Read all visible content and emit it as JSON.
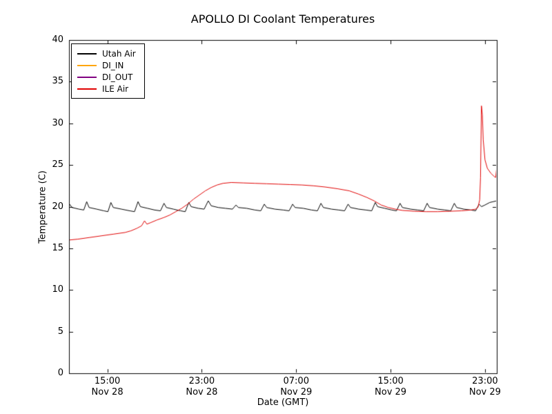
{
  "page": {
    "background": "#ffffff"
  },
  "chart_data": {
    "type": "line",
    "title": "APOLLO DI Coolant Temperatures",
    "xlabel": "Date (GMT)",
    "ylabel": "Temperature (C)",
    "x_unit": "hours since Nov 28 00:00 GMT",
    "xlim": [
      11.75,
      48.0
    ],
    "ylim": [
      0,
      40
    ],
    "y_ticks": [
      0,
      5,
      10,
      15,
      20,
      25,
      30,
      35,
      40
    ],
    "x_ticks": [
      {
        "hour": 15,
        "time": "15:00",
        "date": "Nov 28"
      },
      {
        "hour": 23,
        "time": "23:00",
        "date": "Nov 28"
      },
      {
        "hour": 31,
        "time": "07:00",
        "date": "Nov 29"
      },
      {
        "hour": 39,
        "time": "15:00",
        "date": "Nov 29"
      },
      {
        "hour": 47,
        "time": "23:00",
        "date": "Nov 29"
      }
    ],
    "legend_position": "top-left",
    "grid": false,
    "series": [
      {
        "name": "Utah Air",
        "color": "#000000",
        "points": [
          [
            11.8,
            20.3
          ],
          [
            12.0,
            19.9
          ],
          [
            12.6,
            19.7
          ],
          [
            13.0,
            19.6
          ],
          [
            13.25,
            20.6
          ],
          [
            13.45,
            19.9
          ],
          [
            14.1,
            19.7
          ],
          [
            14.7,
            19.5
          ],
          [
            15.05,
            19.4
          ],
          [
            15.3,
            20.5
          ],
          [
            15.5,
            19.9
          ],
          [
            16.2,
            19.7
          ],
          [
            16.9,
            19.5
          ],
          [
            17.3,
            19.4
          ],
          [
            17.6,
            20.6
          ],
          [
            17.8,
            20.0
          ],
          [
            18.4,
            19.8
          ],
          [
            19.0,
            19.6
          ],
          [
            19.5,
            19.5
          ],
          [
            19.8,
            20.4
          ],
          [
            20.0,
            19.9
          ],
          [
            20.6,
            19.7
          ],
          [
            21.2,
            19.5
          ],
          [
            21.6,
            19.4
          ],
          [
            21.9,
            20.5
          ],
          [
            22.1,
            20.0
          ],
          [
            22.7,
            19.8
          ],
          [
            23.2,
            19.7
          ],
          [
            23.55,
            20.7
          ],
          [
            23.8,
            20.1
          ],
          [
            24.4,
            19.9
          ],
          [
            25.0,
            19.8
          ],
          [
            25.6,
            19.7
          ],
          [
            25.9,
            20.2
          ],
          [
            26.1,
            19.9
          ],
          [
            26.8,
            19.8
          ],
          [
            27.5,
            19.6
          ],
          [
            28.0,
            19.5
          ],
          [
            28.3,
            20.3
          ],
          [
            28.5,
            19.9
          ],
          [
            29.2,
            19.7
          ],
          [
            29.9,
            19.6
          ],
          [
            30.4,
            19.5
          ],
          [
            30.7,
            20.3
          ],
          [
            30.9,
            19.9
          ],
          [
            31.6,
            19.8
          ],
          [
            32.3,
            19.6
          ],
          [
            32.8,
            19.5
          ],
          [
            33.1,
            20.4
          ],
          [
            33.3,
            19.9
          ],
          [
            34.0,
            19.7
          ],
          [
            34.6,
            19.6
          ],
          [
            35.1,
            19.5
          ],
          [
            35.4,
            20.3
          ],
          [
            35.6,
            19.9
          ],
          [
            36.3,
            19.7
          ],
          [
            36.9,
            19.6
          ],
          [
            37.4,
            19.5
          ],
          [
            37.7,
            20.5
          ],
          [
            37.9,
            20.0
          ],
          [
            38.5,
            19.8
          ],
          [
            39.1,
            19.6
          ],
          [
            39.5,
            19.5
          ],
          [
            39.8,
            20.4
          ],
          [
            40.0,
            19.9
          ],
          [
            40.7,
            19.7
          ],
          [
            41.3,
            19.6
          ],
          [
            41.8,
            19.5
          ],
          [
            42.1,
            20.4
          ],
          [
            42.3,
            19.9
          ],
          [
            43.0,
            19.7
          ],
          [
            43.6,
            19.6
          ],
          [
            44.1,
            19.5
          ],
          [
            44.4,
            20.4
          ],
          [
            44.6,
            19.9
          ],
          [
            45.2,
            19.7
          ],
          [
            45.8,
            19.6
          ],
          [
            46.2,
            19.5
          ],
          [
            46.5,
            20.3
          ],
          [
            46.7,
            20.0
          ],
          [
            47.0,
            20.2
          ],
          [
            47.4,
            20.5
          ],
          [
            47.7,
            20.6
          ],
          [
            48.0,
            20.7
          ]
        ]
      },
      {
        "name": "DI_IN",
        "color": "#ffa500",
        "points": []
      },
      {
        "name": "DI_OUT",
        "color": "#800080",
        "points": []
      },
      {
        "name": "ILE Air",
        "color": "#e00000",
        "points": [
          [
            11.8,
            16.0
          ],
          [
            12.5,
            16.1
          ],
          [
            13.5,
            16.3
          ],
          [
            14.5,
            16.5
          ],
          [
            15.5,
            16.7
          ],
          [
            16.5,
            16.9
          ],
          [
            17.0,
            17.1
          ],
          [
            17.5,
            17.4
          ],
          [
            17.9,
            17.7
          ],
          [
            18.15,
            18.3
          ],
          [
            18.35,
            17.9
          ],
          [
            18.7,
            18.1
          ],
          [
            19.2,
            18.4
          ],
          [
            19.8,
            18.7
          ],
          [
            20.3,
            19.0
          ],
          [
            20.8,
            19.4
          ],
          [
            21.3,
            19.8
          ],
          [
            21.8,
            20.3
          ],
          [
            22.3,
            20.9
          ],
          [
            22.8,
            21.4
          ],
          [
            23.3,
            21.9
          ],
          [
            23.8,
            22.3
          ],
          [
            24.3,
            22.6
          ],
          [
            24.8,
            22.8
          ],
          [
            25.5,
            22.9
          ],
          [
            26.5,
            22.85
          ],
          [
            27.5,
            22.8
          ],
          [
            28.5,
            22.75
          ],
          [
            29.5,
            22.7
          ],
          [
            30.5,
            22.65
          ],
          [
            31.5,
            22.6
          ],
          [
            32.5,
            22.5
          ],
          [
            33.5,
            22.35
          ],
          [
            34.5,
            22.15
          ],
          [
            35.5,
            21.9
          ],
          [
            36.3,
            21.5
          ],
          [
            37.0,
            21.1
          ],
          [
            37.6,
            20.7
          ],
          [
            38.2,
            20.2
          ],
          [
            38.8,
            19.9
          ],
          [
            39.4,
            19.7
          ],
          [
            40.0,
            19.55
          ],
          [
            41.0,
            19.45
          ],
          [
            42.0,
            19.4
          ],
          [
            43.0,
            19.4
          ],
          [
            44.0,
            19.45
          ],
          [
            45.0,
            19.5
          ],
          [
            45.8,
            19.6
          ],
          [
            46.2,
            19.7
          ],
          [
            46.4,
            19.9
          ],
          [
            46.55,
            20.8
          ],
          [
            46.62,
            23.5
          ],
          [
            46.7,
            32.1
          ],
          [
            46.78,
            31.0
          ],
          [
            46.85,
            28.0
          ],
          [
            47.0,
            25.6
          ],
          [
            47.2,
            24.6
          ],
          [
            47.5,
            24.0
          ],
          [
            47.8,
            23.6
          ],
          [
            47.9,
            23.5
          ],
          [
            48.0,
            24.9
          ]
        ]
      }
    ]
  }
}
